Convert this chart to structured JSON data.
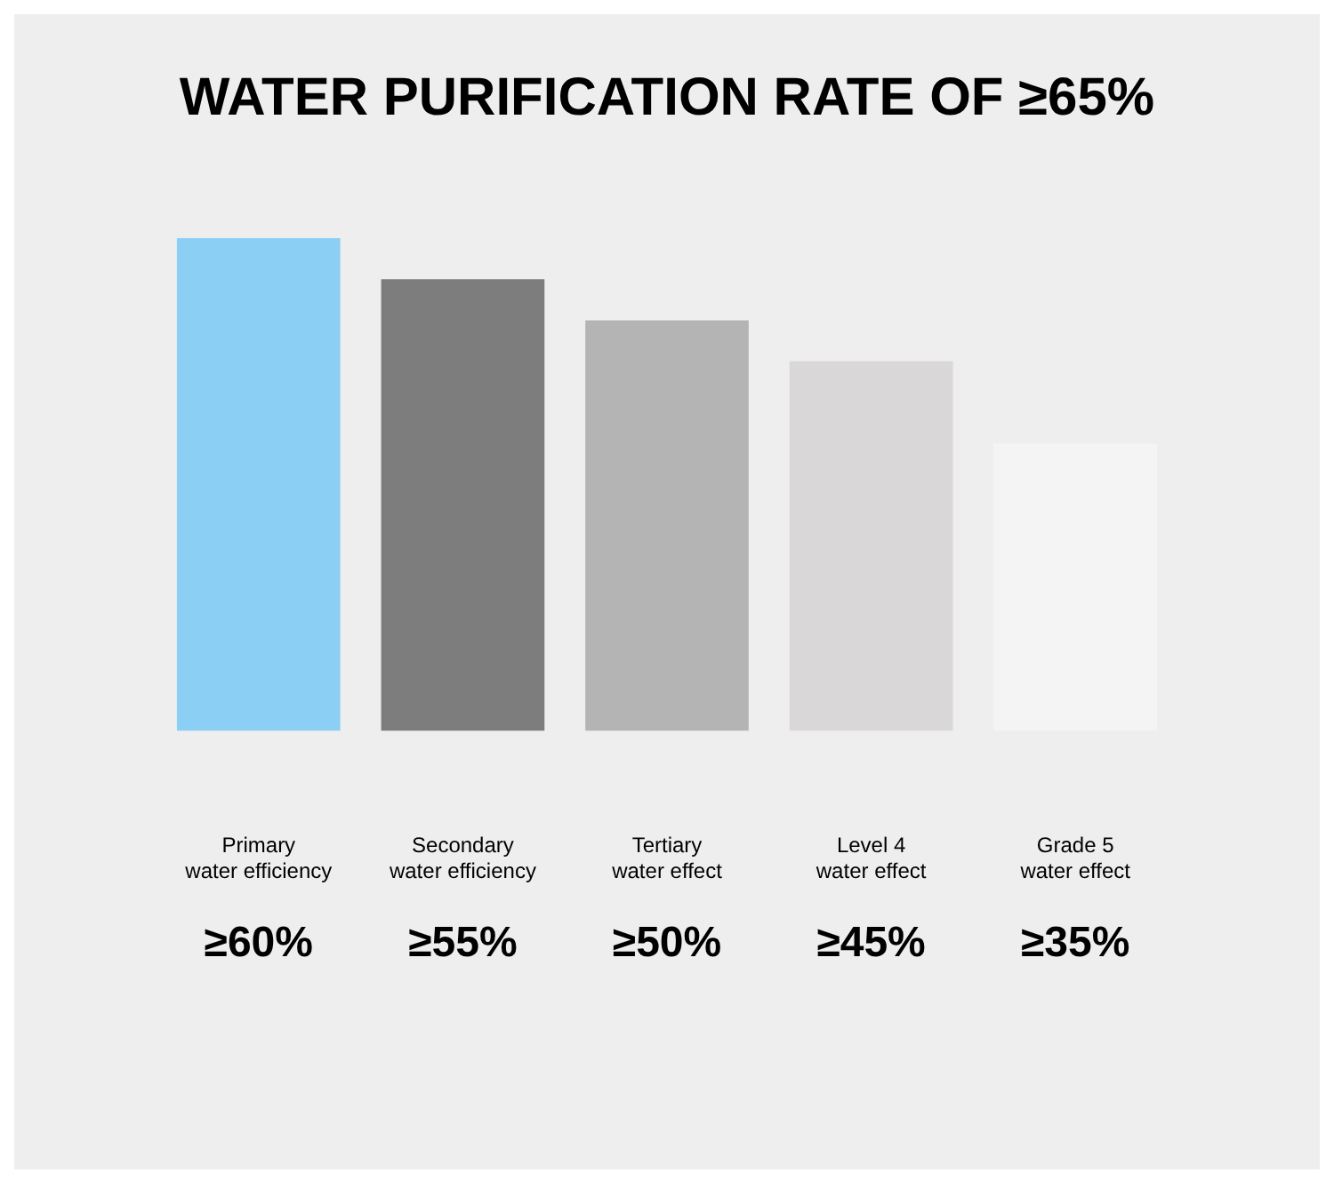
{
  "chart_data": {
    "type": "bar",
    "title": "WATER PURIFICATION RATE OF ≥65%",
    "categories": [
      "Primary\nwater efficiency",
      "Secondary\nwater efficiency",
      "Tertiary\nwater effect",
      "Level 4\nwater effect",
      "Grade 5\nwater effect"
    ],
    "values": [
      60,
      55,
      50,
      45,
      35
    ],
    "colors": [
      "#8ccff5",
      "#7d7d7d",
      "#b4b4b4",
      "#d9d7d7",
      "#f5f4f5"
    ],
    "value_labels": [
      "≥60%",
      "≥55%",
      "≥50%",
      "≥45%",
      "≥35%"
    ],
    "grid": false,
    "legend": false
  }
}
